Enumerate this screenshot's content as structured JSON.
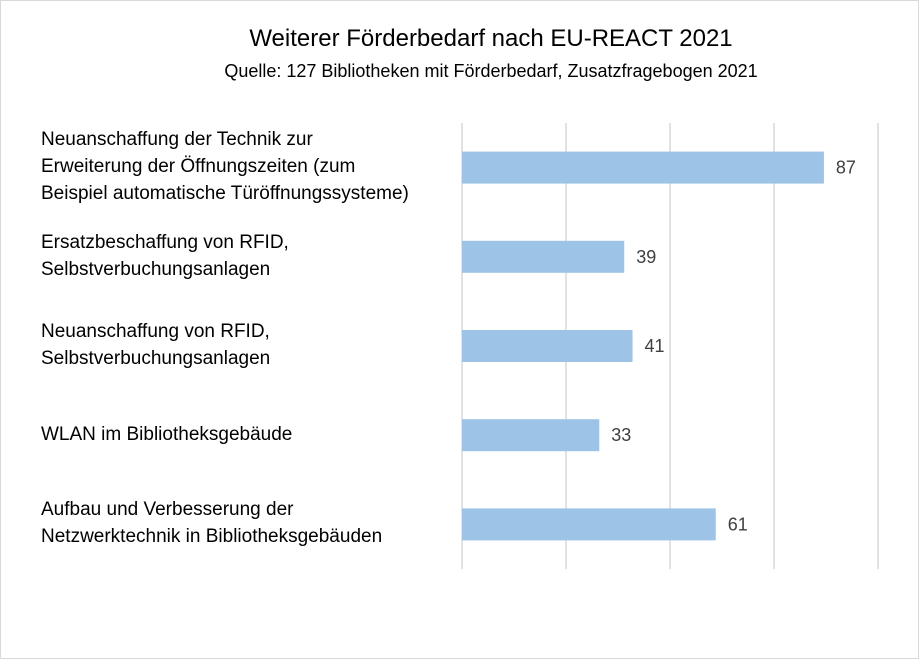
{
  "chart_data": {
    "type": "bar",
    "orientation": "horizontal",
    "title": "Weiterer Förderbedarf nach EU-REACT 2021",
    "subtitle": "Quelle: 127 Bibliotheken mit Förderbedarf, Zusatzfragebogen 2021",
    "categories": [
      "Neuanschaffung der Technik zur\nErweiterung der Öffnungszeiten (zum\nBeispiel automatische Türöffnungssysteme)",
      "Ersatzbeschaffung von RFID,\nSelbstverbuchungsanlagen",
      "Neuanschaffung von RFID,\nSelbstverbuchungsanlagen",
      "WLAN im Bibliotheksgebäude",
      "Aufbau und Verbesserung der\nNetzwerktechnik in Bibliotheksgebäuden"
    ],
    "values": [
      87,
      39,
      41,
      33,
      61
    ],
    "xlim": [
      0,
      100
    ],
    "gridlines_at": [
      0,
      25,
      50,
      75,
      100
    ],
    "grid": true,
    "data_labels": true,
    "bar_color": "#9dc3e6",
    "gridline_color": "#d9d9d9"
  }
}
